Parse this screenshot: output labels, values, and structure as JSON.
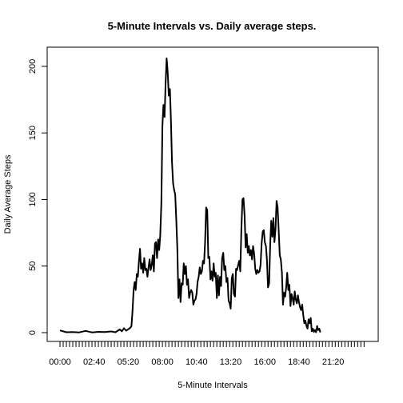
{
  "chart_data": {
    "type": "line",
    "title": "5-Minute Intervals vs. Daily average steps.",
    "xlabel": "5-Minute Intervals",
    "ylabel": "Daily Average Steps",
    "x_tick_labels": [
      "00:00",
      "02:40",
      "05:20",
      "08:00",
      "10:40",
      "13:20",
      "16:00",
      "18:40",
      "21:20"
    ],
    "x_tick_interval_index": [
      0,
      32,
      64,
      96,
      128,
      160,
      192,
      224,
      256
    ],
    "interval_count": 288,
    "minor_tick_every": 3,
    "y_ticks": [
      0,
      50,
      100,
      150,
      200
    ],
    "ylim": [
      0,
      206
    ],
    "grid": false,
    "legend": "none",
    "line_color": "#000000",
    "series": [
      {
        "points": [
          [
            0,
            1.7
          ],
          [
            6,
            0.3
          ],
          [
            12,
            0.5
          ],
          [
            18,
            0.2
          ],
          [
            24,
            1.3
          ],
          [
            30,
            0.2
          ],
          [
            36,
            0.6
          ],
          [
            42,
            0.4
          ],
          [
            48,
            0.9
          ],
          [
            52,
            0.3
          ],
          [
            56,
            2.4
          ],
          [
            58,
            1.0
          ],
          [
            60,
            3.3
          ],
          [
            62,
            1.5
          ],
          [
            64,
            2.5
          ],
          [
            66,
            3.7
          ],
          [
            67,
            5.0
          ],
          [
            68,
            16
          ],
          [
            69,
            32
          ],
          [
            70,
            38
          ],
          [
            71,
            32
          ],
          [
            72,
            44
          ],
          [
            73,
            42
          ],
          [
            74,
            54
          ],
          [
            75,
            63
          ],
          [
            76,
            48
          ],
          [
            77,
            52
          ],
          [
            78,
            45
          ],
          [
            79,
            56
          ],
          [
            80,
            47
          ],
          [
            81,
            48
          ],
          [
            82,
            42
          ],
          [
            83,
            49
          ],
          [
            84,
            55
          ],
          [
            85,
            47
          ],
          [
            86,
            51
          ],
          [
            87,
            58
          ],
          [
            88,
            46
          ],
          [
            89,
            67
          ],
          [
            90,
            68
          ],
          [
            91,
            56
          ],
          [
            92,
            70
          ],
          [
            93,
            62
          ],
          [
            94,
            73
          ],
          [
            95,
            97
          ],
          [
            96,
            155
          ],
          [
            97,
            171
          ],
          [
            98,
            162
          ],
          [
            99,
            187
          ],
          [
            100,
            206
          ],
          [
            101,
            195
          ],
          [
            102,
            178
          ],
          [
            103,
            183
          ],
          [
            104,
            159
          ],
          [
            105,
            128
          ],
          [
            106,
            112
          ],
          [
            107,
            107
          ],
          [
            108,
            104
          ],
          [
            109,
            84
          ],
          [
            110,
            63
          ],
          [
            111,
            26
          ],
          [
            112,
            40
          ],
          [
            113,
            23
          ],
          [
            114,
            37
          ],
          [
            115,
            36
          ],
          [
            116,
            52
          ],
          [
            117,
            44
          ],
          [
            118,
            50
          ],
          [
            119,
            36
          ],
          [
            120,
            40
          ],
          [
            121,
            26
          ],
          [
            122,
            30
          ],
          [
            123,
            32
          ],
          [
            124,
            30
          ],
          [
            125,
            21
          ],
          [
            126,
            24
          ],
          [
            127,
            25
          ],
          [
            128,
            29
          ],
          [
            129,
            38
          ],
          [
            130,
            42
          ],
          [
            131,
            49
          ],
          [
            132,
            44
          ],
          [
            133,
            46
          ],
          [
            134,
            54
          ],
          [
            135,
            52
          ],
          [
            136,
            68
          ],
          [
            137,
            94
          ],
          [
            138,
            92
          ],
          [
            139,
            56
          ],
          [
            140,
            57
          ],
          [
            141,
            40
          ],
          [
            142,
            46
          ],
          [
            143,
            39
          ],
          [
            144,
            52
          ],
          [
            145,
            42
          ],
          [
            146,
            45
          ],
          [
            147,
            26
          ],
          [
            148,
            43
          ],
          [
            149,
            28
          ],
          [
            150,
            42
          ],
          [
            151,
            35
          ],
          [
            152,
            56
          ],
          [
            153,
            60
          ],
          [
            154,
            47
          ],
          [
            155,
            50
          ],
          [
            156,
            38
          ],
          [
            157,
            41
          ],
          [
            158,
            24
          ],
          [
            159,
            22
          ],
          [
            160,
            18
          ],
          [
            161,
            41
          ],
          [
            162,
            44
          ],
          [
            163,
            29
          ],
          [
            164,
            27
          ],
          [
            165,
            48
          ],
          [
            166,
            47
          ],
          [
            167,
            51
          ],
          [
            168,
            54
          ],
          [
            169,
            46
          ],
          [
            170,
            78
          ],
          [
            171,
            100
          ],
          [
            172,
            101
          ],
          [
            173,
            88
          ],
          [
            174,
            64
          ],
          [
            175,
            74
          ],
          [
            176,
            60
          ],
          [
            177,
            65
          ],
          [
            178,
            58
          ],
          [
            179,
            62
          ],
          [
            180,
            55
          ],
          [
            181,
            65
          ],
          [
            182,
            59
          ],
          [
            183,
            48
          ],
          [
            184,
            44
          ],
          [
            185,
            47
          ],
          [
            186,
            45
          ],
          [
            187,
            46
          ],
          [
            188,
            51
          ],
          [
            189,
            67
          ],
          [
            190,
            76
          ],
          [
            191,
            77
          ],
          [
            192,
            68
          ],
          [
            193,
            65
          ],
          [
            194,
            54
          ],
          [
            195,
            34
          ],
          [
            196,
            37
          ],
          [
            197,
            66
          ],
          [
            198,
            84
          ],
          [
            199,
            72
          ],
          [
            200,
            86
          ],
          [
            201,
            68
          ],
          [
            202,
            78
          ],
          [
            203,
            99
          ],
          [
            204,
            94
          ],
          [
            205,
            76
          ],
          [
            206,
            58
          ],
          [
            207,
            55
          ],
          [
            208,
            45
          ],
          [
            209,
            21
          ],
          [
            210,
            30
          ],
          [
            211,
            27
          ],
          [
            212,
            34
          ],
          [
            213,
            45
          ],
          [
            214,
            32
          ],
          [
            215,
            36
          ],
          [
            216,
            20
          ],
          [
            217,
            29
          ],
          [
            218,
            26
          ],
          [
            219,
            21
          ],
          [
            220,
            31
          ],
          [
            221,
            25
          ],
          [
            222,
            22
          ],
          [
            223,
            28
          ],
          [
            224,
            23
          ],
          [
            225,
            19
          ],
          [
            226,
            17
          ],
          [
            227,
            21
          ],
          [
            228,
            13
          ],
          [
            229,
            7
          ],
          [
            230,
            9
          ],
          [
            231,
            5
          ],
          [
            232,
            3
          ],
          [
            233,
            10
          ],
          [
            234,
            7
          ],
          [
            235,
            11
          ],
          [
            236,
            1
          ],
          [
            237,
            3
          ],
          [
            238,
            0.5
          ],
          [
            239,
            2
          ],
          [
            240,
            0.3
          ],
          [
            241,
            5
          ],
          [
            242,
            2
          ],
          [
            243,
            3
          ],
          [
            244,
            0.2
          ]
        ]
      }
    ]
  }
}
